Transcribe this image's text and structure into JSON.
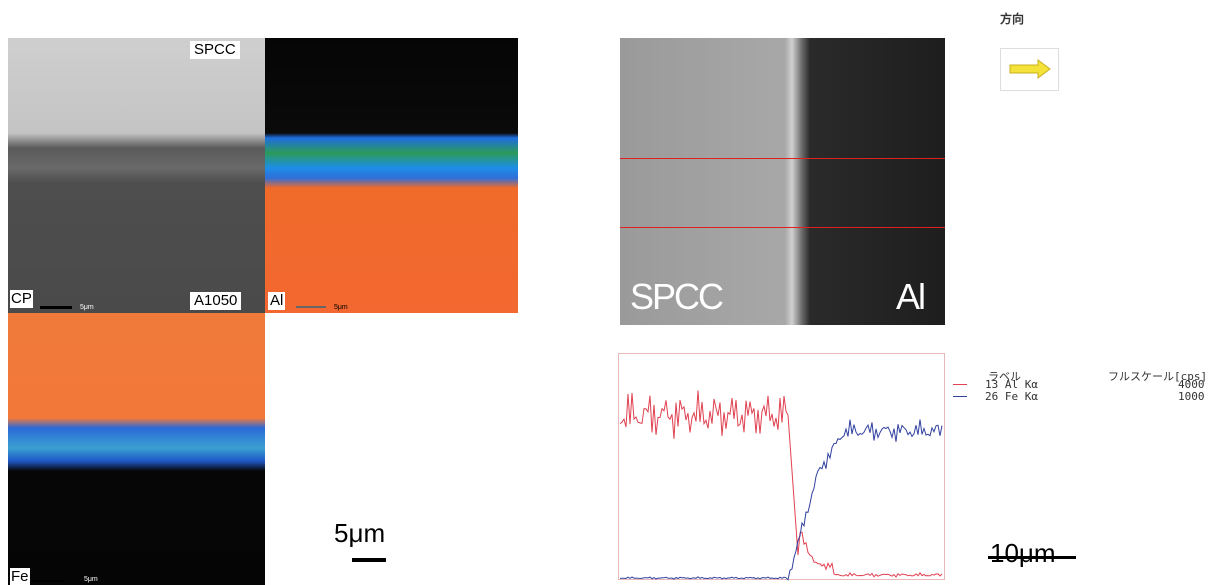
{
  "sem_map": {
    "se_image": {
      "top_label": "SPCC",
      "bottom_label": "A1050",
      "corner_label": "CP",
      "scale_bar": "5μm"
    },
    "al_map": {
      "label": "Al",
      "scale_bar": "5μm"
    },
    "fe_map": {
      "label": "Fe",
      "scale_bar": "5μm"
    },
    "scale": "5μm"
  },
  "line_scan": {
    "direction_label": "方向",
    "image_labels": [
      "SPCC",
      "Al"
    ],
    "scale": "10μm",
    "legend": {
      "label_header": "ラベル",
      "fullscale_header": "フルスケール[cps]",
      "rows": [
        [
          "13 Al Kα",
          4000
        ],
        [
          "26 Fe Kα",
          1000
        ]
      ]
    }
  }
}
